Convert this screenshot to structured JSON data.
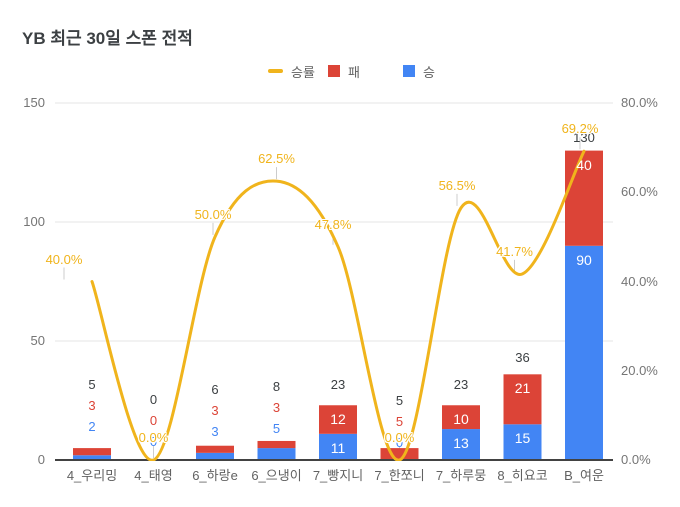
{
  "chart_data": {
    "type": "combo",
    "title": "YB 최근 30일 스폰 전적",
    "categories": [
      "4_우리밍",
      "4_태영",
      "6_하랑e",
      "6_으냉이",
      "7_빵지니",
      "7_한쪼니",
      "7_하루뭉",
      "8_히요코",
      "B_여운"
    ],
    "series": [
      {
        "name": "승률",
        "type": "line",
        "axis": "right",
        "color": "#F0B41C",
        "values": [
          40.0,
          0.0,
          50.0,
          62.5,
          47.8,
          0.0,
          56.5,
          41.7,
          69.2
        ],
        "labels": [
          "40.0%",
          "0.0%",
          "50.0%",
          "62.5%",
          "47.8%",
          "0.0%",
          "56.5%",
          "41.7%",
          "69.2%"
        ]
      },
      {
        "name": "패",
        "type": "bar-stacked",
        "axis": "left",
        "color": "#DC4437",
        "values": [
          3,
          0,
          3,
          3,
          12,
          5,
          10,
          21,
          40
        ]
      },
      {
        "name": "승",
        "type": "bar-stacked",
        "axis": "left",
        "color": "#4285F4",
        "values": [
          2,
          0,
          3,
          5,
          11,
          0,
          13,
          15,
          90
        ]
      }
    ],
    "totals": [
      5,
      0,
      6,
      8,
      23,
      5,
      23,
      36,
      130
    ],
    "left_axis": {
      "ticks": [
        "0",
        "50",
        "100",
        "150"
      ],
      "tick_values": [
        0,
        50,
        100,
        150
      ],
      "min": 0,
      "max": 150
    },
    "right_axis": {
      "ticks": [
        "0.0%",
        "20.0%",
        "40.0%",
        "60.0%",
        "80.0%"
      ],
      "tick_values": [
        0,
        20,
        40,
        60,
        80
      ],
      "min": 0,
      "max": 80
    },
    "legend": [
      {
        "label": "승률",
        "color": "#F0B41C",
        "shape": "line"
      },
      {
        "label": "패",
        "color": "#DC4437",
        "shape": "square"
      },
      {
        "label": "승",
        "color": "#4285F4",
        "shape": "square"
      }
    ],
    "legend_position": "top",
    "grid": true,
    "colors": {
      "win": "#4285F4",
      "loss": "#DC4437",
      "rate": "#F0B41C",
      "baseline": "#424242",
      "gridline": "#e6e6e6"
    }
  }
}
